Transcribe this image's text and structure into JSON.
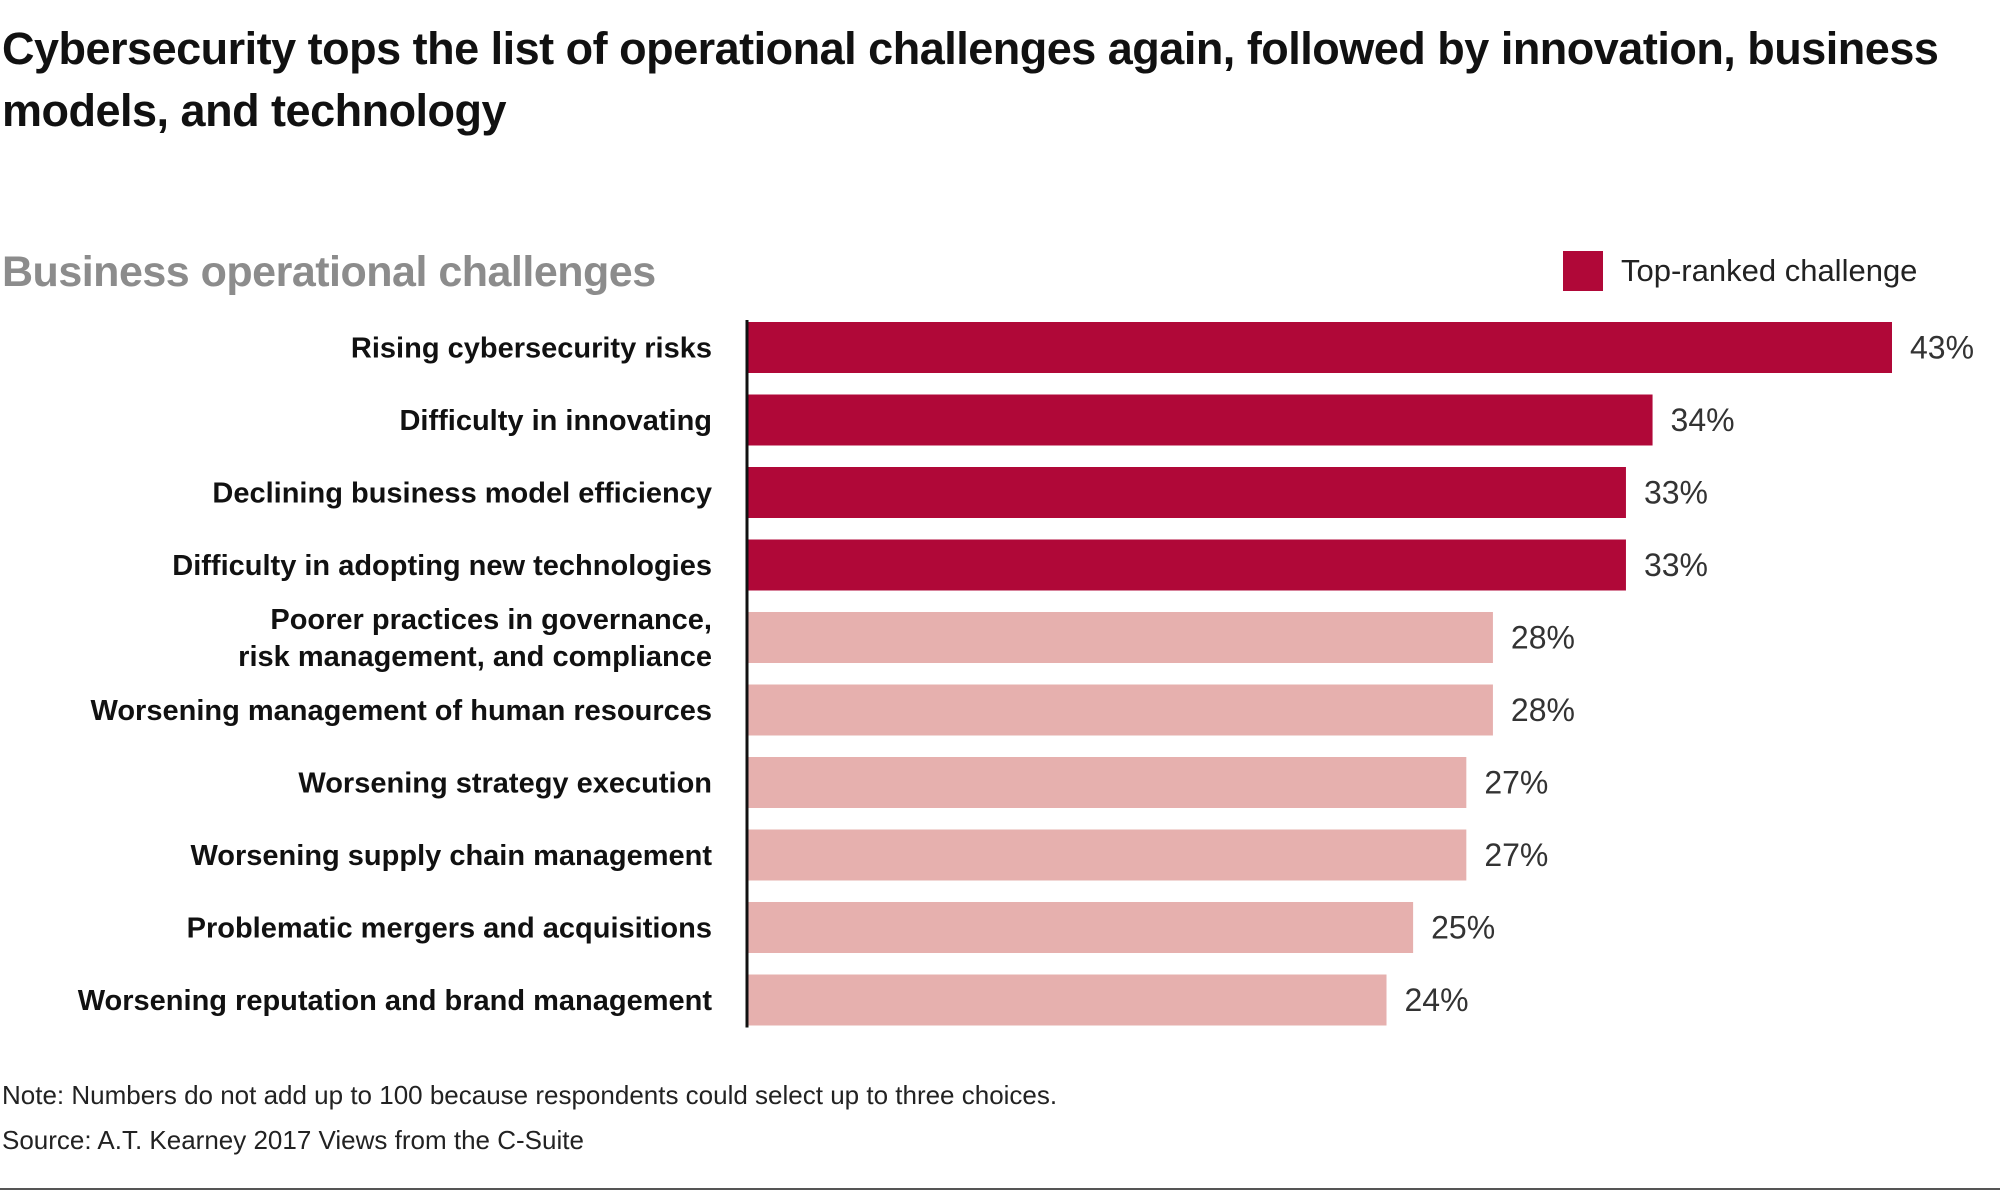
{
  "colors": {
    "top_ranked": "#b00838",
    "other": "#e6b0ae",
    "axis": "#111111"
  },
  "legend": {
    "label": "Top-ranked challenge",
    "swatch_color": "#b00838"
  },
  "chart_data": {
    "type": "bar",
    "orientation": "horizontal",
    "title": "Cybersecurity tops the list of operational challenges again, followed by innovation, business models, and technology",
    "subtitle": "Business operational challenges",
    "categories": [
      [
        "Rising cybersecurity risks"
      ],
      [
        "Difficulty in innovating"
      ],
      [
        "Declining business model efficiency"
      ],
      [
        "Difficulty in adopting new technologies"
      ],
      [
        "Poorer practices in governance,",
        "risk management, and compliance"
      ],
      [
        "Worsening management of human resources"
      ],
      [
        "Worsening strategy execution"
      ],
      [
        "Worsening supply chain management"
      ],
      [
        "Problematic mergers and acquisitions"
      ],
      [
        "Worsening reputation and brand management"
      ]
    ],
    "values": [
      43,
      34,
      33,
      33,
      28,
      28,
      27,
      27,
      25,
      24
    ],
    "value_labels": [
      "43%",
      "34%",
      "33%",
      "33%",
      "28%",
      "28%",
      "27%",
      "27%",
      "25%",
      "24%"
    ],
    "top_ranked": [
      true,
      true,
      true,
      true,
      false,
      false,
      false,
      false,
      false,
      false
    ],
    "xlim": [
      0,
      43
    ],
    "unit": "%",
    "grid": false,
    "legend_position": "top-right"
  },
  "footer": {
    "note": "Note: Numbers do not add up to 100 because respondents could select up to three choices.",
    "source": "Source: A.T. Kearney 2017 Views from the C-Suite"
  }
}
